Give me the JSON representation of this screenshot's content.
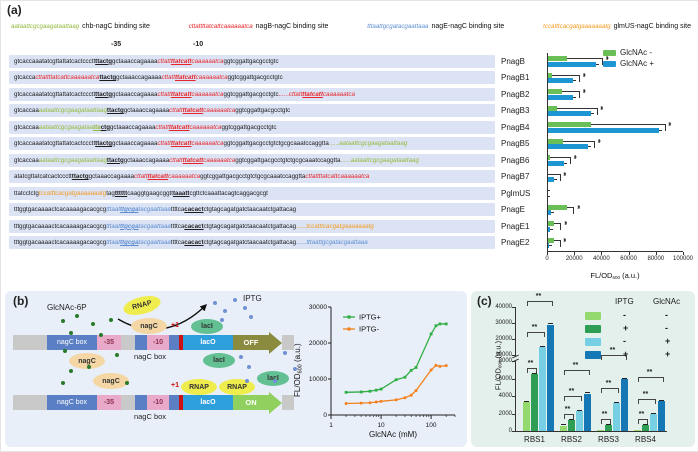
{
  "figure": {
    "panel_a_label": "(a)",
    "panel_b_label": "(b)",
    "panel_c_label": "(c)"
  },
  "panel_a": {
    "site_legend": [
      {
        "seq": "aataattcgcgaagataattaag",
        "color": "#93b93c",
        "label": "chb-nagC binding site"
      },
      {
        "seq": "cttattttatcattcaaaaaatca",
        "color": "#e8262a",
        "label": "nagB-nagC binding site"
      },
      {
        "seq": "tttaattgcgatacgaattaaa",
        "color": "#5f8fd2",
        "label": "nagE-nagC binding site"
      },
      {
        "seq": "tccatttcacgatgaaaaaaatg",
        "color": "#f49b20",
        "label": "glmUS-nagC binding site"
      }
    ],
    "pos_minus35": "-35",
    "pos_minus10": "-10",
    "rows": [
      {
        "name": "PnagB",
        "segments": [
          [
            "gtcaccaaatatcgttattatcactccctt",
            "k",
            ""
          ],
          [
            "ttactg",
            "k",
            "bu"
          ],
          [
            "gctaaaccagaaaa",
            "k",
            ""
          ],
          [
            "cttatt",
            "r",
            "i"
          ],
          [
            "ttatcatt",
            "r",
            "ibu"
          ],
          [
            "caaaaaatca",
            "r",
            "i"
          ],
          [
            "ggtcggattgacgcctgtc",
            "k",
            ""
          ]
        ]
      },
      {
        "name": "PnagB1",
        "segments": [
          [
            "gtcacca",
            "k",
            ""
          ],
          [
            "cttattttatcattcaaaaaatca",
            "r",
            "i"
          ],
          [
            "ttactg",
            "k",
            "bu"
          ],
          [
            "gctaaaccagaaaa",
            "k",
            ""
          ],
          [
            "cttatt",
            "r",
            "i"
          ],
          [
            "ttatcatt",
            "r",
            "ibu"
          ],
          [
            "caaaaaatca",
            "r",
            "i"
          ],
          [
            "ggtcggattgacgcctgtc",
            "k",
            ""
          ]
        ]
      },
      {
        "name": "PnagB2",
        "segments": [
          [
            "gtcaccaaatatcgttattatcactccctt",
            "k",
            ""
          ],
          [
            "ttactg",
            "k",
            "bu"
          ],
          [
            "gctaaaccagaaaa",
            "k",
            ""
          ],
          [
            "cttatt",
            "r",
            "i"
          ],
          [
            "ttatcatt",
            "r",
            "ibu"
          ],
          [
            "caaaaaatca",
            "r",
            "i"
          ],
          [
            "ggtcggattgacgcctgtc",
            "k",
            ""
          ],
          [
            "......",
            "r",
            ""
          ],
          [
            "cttatt",
            "r",
            "i"
          ],
          [
            "ttatcatt",
            "r",
            "ibu"
          ],
          [
            "caaaaaatca",
            "r",
            "i"
          ]
        ]
      },
      {
        "name": "PnagB3",
        "segments": [
          [
            "gtcaccaa",
            "k",
            ""
          ],
          [
            "aataattcgcgaagataattaag",
            "g",
            "i"
          ],
          [
            "ttactg",
            "k",
            "bu"
          ],
          [
            "gctaaaccagaaaa",
            "k",
            ""
          ],
          [
            "cttatt",
            "r",
            "i"
          ],
          [
            "ttatcatt",
            "r",
            "ibu"
          ],
          [
            "caaaaaatca",
            "r",
            "i"
          ],
          [
            "ggtcggattgacgcctgtc",
            "k",
            ""
          ]
        ]
      },
      {
        "name": "PnagB4",
        "segments": [
          [
            "gtcaccaa",
            "k",
            ""
          ],
          [
            "aataattcgcgaagataa",
            "g",
            "i"
          ],
          [
            "tta",
            "g",
            "ibu"
          ],
          [
            "ctg",
            "k",
            "bu"
          ],
          [
            "gctaaaccagaaaa",
            "k",
            ""
          ],
          [
            "cttatt",
            "r",
            "i"
          ],
          [
            "ttatcatt",
            "r",
            "ibu"
          ],
          [
            "caaaaaatca",
            "r",
            "i"
          ],
          [
            "ggtcggattgacgcctgtc",
            "k",
            ""
          ]
        ]
      },
      {
        "name": "PnagB5",
        "segments": [
          [
            "gtcaccaaatatcgttattatcactccctt",
            "k",
            ""
          ],
          [
            "ttactg",
            "k",
            "bu"
          ],
          [
            "gctaaaccagaaaa",
            "k",
            ""
          ],
          [
            "cttatt",
            "r",
            "i"
          ],
          [
            "ttatcatt",
            "r",
            "ibu"
          ],
          [
            "caaaaaatca",
            "r",
            "i"
          ],
          [
            "ggtcggattgacgcctgtctgcgcaaatccaggtta",
            "k",
            ""
          ],
          [
            "......",
            "g",
            ""
          ],
          [
            "aataattcgcgaagataattaag",
            "g",
            "i"
          ]
        ]
      },
      {
        "name": "PnagB6",
        "segments": [
          [
            "gtcaccaa",
            "k",
            ""
          ],
          [
            "aataattcgcgaagataattaag",
            "g",
            "i"
          ],
          [
            "ttactg",
            "k",
            "bu"
          ],
          [
            "gctaaaccagaaaa",
            "k",
            ""
          ],
          [
            "cttatt",
            "r",
            "i"
          ],
          [
            "ttatcatt",
            "r",
            "ibu"
          ],
          [
            "caaaaaatca",
            "r",
            "i"
          ],
          [
            "ggtcggattgacgcctgtctgcgcaaatccaggtta",
            "k",
            ""
          ],
          [
            "......",
            "g",
            ""
          ],
          [
            "aataattcgcgaagataattaag",
            "g",
            "i"
          ]
        ]
      },
      {
        "name": "PnagB7",
        "segments": [
          [
            "atatcgttatcatcactccctt",
            "k",
            ""
          ],
          [
            "ttactg",
            "k",
            "bu"
          ],
          [
            "gctaaaccagaaaa",
            "k",
            ""
          ],
          [
            "cttatt",
            "r",
            "i"
          ],
          [
            "ttatcatt",
            "r",
            "ibu"
          ],
          [
            "caaaaaatca",
            "r",
            "i"
          ],
          [
            "ggtcggattgacgcctgtctgcgcaaatccaggtta",
            "k",
            ""
          ],
          [
            "cttattttatcattcaaaaaatca",
            "r",
            "i"
          ]
        ]
      },
      {
        "name": "PglmUS",
        "segments": [
          [
            "ttatcctctg",
            "k",
            ""
          ],
          [
            "tccatttcacgatgaaaaaaatg",
            "o",
            "i"
          ],
          [
            "tag",
            "k",
            ""
          ],
          [
            "tttttt",
            "k",
            "bu"
          ],
          [
            "caaggtgaagcggtt",
            "k",
            ""
          ],
          [
            "taaatt",
            "k",
            "bu"
          ],
          [
            "cgttctcaaattacagtcaggacgcgt",
            "k",
            ""
          ]
        ]
      },
      {
        "name": "PnagE",
        "segments": [
          [
            "tttggtgacaaaactcacaaaagacacgcg",
            "k",
            ""
          ],
          [
            "tttaat",
            "b",
            "i"
          ],
          [
            "ttgcga",
            "b",
            "ibu"
          ],
          [
            "tacgaattaaa",
            "b",
            "i"
          ],
          [
            "ttttca",
            "k",
            ""
          ],
          [
            "cacact",
            "k",
            "bu"
          ],
          [
            "ctgtagcagatgatctaacaatctgattacag",
            "k",
            ""
          ]
        ]
      },
      {
        "name": "PnagE1",
        "segments": [
          [
            "tttggtgacaaaactcacaaaagacacgcg",
            "k",
            ""
          ],
          [
            "tttaat",
            "b",
            "i"
          ],
          [
            "ttgcga",
            "b",
            "ibu"
          ],
          [
            "tacgaattaaa",
            "b",
            "i"
          ],
          [
            "ttttca",
            "k",
            ""
          ],
          [
            "cacact",
            "k",
            "bu"
          ],
          [
            "ctgtagcagatgatctaacaatctgattacag",
            "k",
            ""
          ],
          [
            "......",
            "o",
            ""
          ],
          [
            "tccatttcacgatgaaaaaaatg",
            "o",
            "i"
          ]
        ]
      },
      {
        "name": "PnagE2",
        "segments": [
          [
            "tttggtgacaaaactcacaaaagacacgcg",
            "k",
            ""
          ],
          [
            "tttaat",
            "b",
            "i"
          ],
          [
            "ttgcga",
            "b",
            "ibu"
          ],
          [
            "tacgaattaaa",
            "b",
            "i"
          ],
          [
            "ttttca",
            "k",
            ""
          ],
          [
            "cacact",
            "k",
            "bu"
          ],
          [
            "ctgtagcagatgatctaacaatctgattacag",
            "k",
            ""
          ],
          [
            "......",
            "b",
            ""
          ],
          [
            "tttaattgcgatacgaattaaa",
            "b",
            "i"
          ]
        ]
      }
    ]
  },
  "panel_b": {
    "diagram": {
      "glcnac6p": "GlcNAc-6P",
      "rnap": "RNAP",
      "iptg": "IPTG",
      "nagc": "nagC",
      "laci": "lacI",
      "laco": "lacO",
      "off": "OFF",
      "on": "ON",
      "nagc_box": "nagC box",
      "minus35": "-35",
      "minus10": "-10",
      "plus1": "+1"
    }
  },
  "chart_data": [
    {
      "id": "panel-a-bars",
      "type": "bar",
      "orientation": "horizontal",
      "title": "",
      "xlabel": {
        "pre": "FL/OD",
        "sub": "600",
        "post": " (a.u.)"
      },
      "xlim": [
        0,
        100000
      ],
      "xticks": [
        0,
        20000,
        40000,
        60000,
        80000,
        100000
      ],
      "categories": [
        "PnagB",
        "PnagB1",
        "PnagB2",
        "PnagB3",
        "PnagB4",
        "PnagB5",
        "PnagB6",
        "PnagB7",
        "PglmUS",
        "PnagE",
        "PnagE1",
        "PnagE2"
      ],
      "series": [
        {
          "name": "GlcNAc -",
          "color": "#6abf57",
          "values": [
            15000,
            4000,
            11000,
            7500,
            32000,
            11500,
            2000,
            800,
            300,
            15000,
            5500,
            4800
          ]
        },
        {
          "name": "GlcNAc +",
          "color": "#1e96d3",
          "values": [
            36000,
            19000,
            19000,
            32000,
            82000,
            30000,
            12500,
            4800,
            300,
            3200,
            2000,
            1500
          ]
        }
      ],
      "sig_label": "**",
      "sig_rows": [
        true,
        true,
        true,
        true,
        true,
        true,
        true,
        true,
        false,
        true,
        true,
        true
      ],
      "legend_position": "top-right"
    },
    {
      "id": "panel-b-line",
      "type": "line",
      "xscale": "log",
      "xlabel": "GlcNAc (mM)",
      "ylabel": {
        "pre": "FL/OD",
        "sub": "600",
        "post": " (a.u.)"
      },
      "xlim": [
        1,
        300
      ],
      "ylim": [
        0,
        30000
      ],
      "xticks": [
        1,
        10,
        100
      ],
      "yticks": [
        0,
        10000,
        20000,
        30000
      ],
      "x": [
        2,
        4,
        6,
        8,
        10,
        20,
        30,
        40,
        50,
        100,
        125,
        150,
        200
      ],
      "series": [
        {
          "name": "IPTG+",
          "color": "#2fae43",
          "marker": "square",
          "values": [
            6300,
            6400,
            6600,
            6900,
            7200,
            9800,
            10500,
            12400,
            13200,
            22500,
            24800,
            25300,
            25300
          ]
        },
        {
          "name": "IPTG-",
          "color": "#f28220",
          "marker": "circle",
          "values": [
            3200,
            3300,
            3400,
            3600,
            3800,
            4200,
            4800,
            5500,
            6800,
            12500,
            13800,
            13500,
            13700
          ]
        }
      ],
      "legend_position": "top-left"
    },
    {
      "id": "panel-c-bars",
      "type": "bar-grouped-broken-axis",
      "ylabel": {
        "pre": "FL/OD",
        "sub": "600",
        "post": " (a.u.)"
      },
      "categories": [
        "RBS1",
        "RBS2",
        "RBS3",
        "RBS4"
      ],
      "axis_lower": {
        "lim": [
          0,
          8000
        ],
        "ticks": [
          0,
          2000,
          4000,
          6000,
          8000
        ]
      },
      "axis_upper": {
        "lim": [
          10000,
          40000
        ],
        "ticks": [
          10000,
          20000,
          30000,
          40000
        ]
      },
      "series": [
        {
          "name": "IPTG- GlcNAc-",
          "color": "#93d96e",
          "values": [
            3300,
            600,
            150,
            100
          ]
        },
        {
          "name": "IPTG+ GlcNAc-",
          "color": "#2f9e55",
          "values": [
            6500,
            1250,
            650,
            650
          ]
        },
        {
          "name": "IPTG- GlcNAc+",
          "color": "#77cfe3",
          "values": [
            15000,
            2250,
            3200,
            1900
          ]
        },
        {
          "name": "IPTG+ GlcNAc+",
          "color": "#1578b5",
          "values": [
            29000,
            4250,
            5900,
            3400
          ]
        }
      ],
      "legend": {
        "headers": [
          "IPTG",
          "GlcNAc"
        ],
        "rows": [
          [
            "-",
            "-"
          ],
          [
            "+",
            "-"
          ],
          [
            "-",
            "+"
          ],
          [
            "+",
            "+"
          ]
        ]
      },
      "sig": {
        "label": "**",
        "pairs": [
          [
            0,
            1
          ],
          [
            0,
            2
          ],
          [
            0,
            3
          ]
        ]
      }
    }
  ]
}
